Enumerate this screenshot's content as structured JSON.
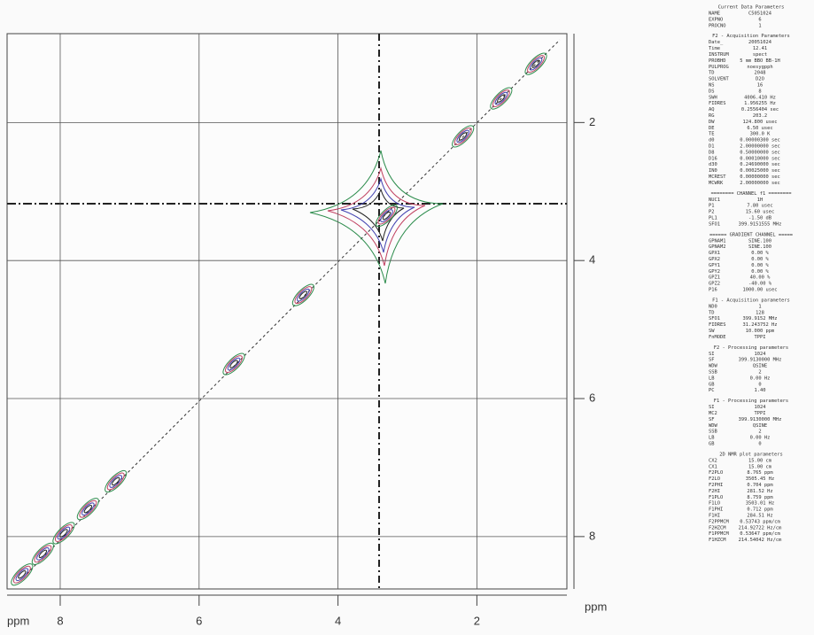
{
  "chart_data": {
    "type": "contour",
    "x_label": "ppm",
    "y_label": "ppm",
    "xlim": [
      8.765,
      0.704
    ],
    "ylim": [
      0.712,
      8.759
    ],
    "xticks": [
      8,
      6,
      4,
      2
    ],
    "yticks": [
      2,
      4,
      6,
      8
    ],
    "grid": true,
    "color": "#2a2a6a",
    "peaks": [
      {
        "x": 8.55,
        "y": 8.55
      },
      {
        "x": 8.25,
        "y": 8.25
      },
      {
        "x": 7.95,
        "y": 7.95
      },
      {
        "x": 7.6,
        "y": 7.6
      },
      {
        "x": 7.2,
        "y": 7.2
      },
      {
        "x": 5.5,
        "y": 5.5
      },
      {
        "x": 4.5,
        "y": 4.5
      },
      {
        "x": 3.3,
        "y": 3.35
      },
      {
        "x": 2.2,
        "y": 2.2
      },
      {
        "x": 1.65,
        "y": 1.65
      },
      {
        "x": 1.15,
        "y": 1.15
      }
    ]
  },
  "parameters": [
    {
      "title": "Current Data Parameters",
      "rows": [
        [
          "NAME",
          "C5051024"
        ],
        [
          "EXPNO",
          "6"
        ],
        [
          "PROCNO",
          "1"
        ]
      ]
    },
    {
      "title": "F2 - Acquisition Parameters",
      "rows": [
        [
          "Date_",
          "20051024"
        ],
        [
          "Time",
          "12.41"
        ],
        [
          "INSTRUM",
          "spect"
        ],
        [
          "PROBHD",
          "5 mm BBO BB-1H"
        ],
        [
          "PULPROG",
          "noesygpph"
        ],
        [
          "TD",
          "2048"
        ],
        [
          "SOLVENT",
          "D2O"
        ],
        [
          "NS",
          "16"
        ],
        [
          "DS",
          "8"
        ],
        [
          "SWH",
          "4006.410 Hz"
        ],
        [
          "FIDRES",
          "1.956255 Hz"
        ],
        [
          "AQ",
          "0.2556404 sec"
        ],
        [
          "RG",
          "203.2"
        ],
        [
          "DW",
          "124.800 usec"
        ],
        [
          "DE",
          "6.50 usec"
        ],
        [
          "TE",
          "300.0 K"
        ],
        [
          "d0",
          "0.00000300 sec"
        ],
        [
          "D1",
          "2.00000000 sec"
        ],
        [
          "D8",
          "0.50000000 sec"
        ],
        [
          "D16",
          "0.00010000 sec"
        ],
        [
          "d30",
          "0.24690000 sec"
        ],
        [
          "IN0",
          "0.00025000 sec"
        ],
        [
          "MCREST",
          "0.00000000 sec"
        ],
        [
          "MCWRK",
          "2.00000000 sec"
        ]
      ]
    },
    {
      "title": "======== CHANNEL f1 ========",
      "rows": [
        [
          "NUC1",
          "1H"
        ],
        [
          "P1",
          "7.80 usec"
        ],
        [
          "P2",
          "15.60 usec"
        ],
        [
          "PL1",
          "-1.50 dB"
        ],
        [
          "SFO1",
          "399.9151555 MHz"
        ]
      ]
    },
    {
      "title": "====== GRADIENT CHANNEL =====",
      "rows": [
        [
          "GPNAM1",
          "SINE.100"
        ],
        [
          "GPNAM2",
          "SINE.100"
        ],
        [
          "GPX1",
          "0.00 %"
        ],
        [
          "GPX2",
          "0.00 %"
        ],
        [
          "GPY1",
          "0.00 %"
        ],
        [
          "GPY2",
          "0.00 %"
        ],
        [
          "GPZ1",
          "40.00 %"
        ],
        [
          "GPZ2",
          "-40.00 %"
        ],
        [
          "P16",
          "1000.00 usec"
        ]
      ]
    },
    {
      "title": "F1 - Acquisition parameters",
      "rows": [
        [
          "ND0",
          "1"
        ],
        [
          "TD",
          "128"
        ],
        [
          "SFO1",
          "399.9152 MHz"
        ],
        [
          "FIDRES",
          "31.243752 Hz"
        ],
        [
          "SW",
          "10.000 ppm"
        ],
        [
          "FnMODE",
          "TPPI"
        ]
      ]
    },
    {
      "title": "F2 - Processing parameters",
      "rows": [
        [
          "SI",
          "1024"
        ],
        [
          "SF",
          "399.9130000 MHz"
        ],
        [
          "WDW",
          "QSINE"
        ],
        [
          "SSB",
          "2"
        ],
        [
          "LB",
          "0.00 Hz"
        ],
        [
          "GB",
          "0"
        ],
        [
          "PC",
          "1.40"
        ]
      ]
    },
    {
      "title": "F1 - Processing parameters",
      "rows": [
        [
          "SI",
          "1024"
        ],
        [
          "MC2",
          "TPPI"
        ],
        [
          "SF",
          "399.9130000 MHz"
        ],
        [
          "WDW",
          "QSINE"
        ],
        [
          "SSB",
          "2"
        ],
        [
          "LB",
          "0.00 Hz"
        ],
        [
          "GB",
          "0"
        ]
      ]
    },
    {
      "title": "2D NMR plot parameters",
      "rows": [
        [
          "CX2",
          "15.00 cm"
        ],
        [
          "CX1",
          "15.00 cm"
        ],
        [
          "F2PLO",
          "8.765 ppm"
        ],
        [
          "F2LO",
          "3505.45 Hz"
        ],
        [
          "F2PHI",
          "0.704 ppm"
        ],
        [
          "F2HI",
          "281.52 Hz"
        ],
        [
          "F1PLO",
          "8.759 ppm"
        ],
        [
          "F1LO",
          "3503.01 Hz"
        ],
        [
          "F1PHI",
          "0.712 ppm"
        ],
        [
          "F1HI",
          "284.51 Hz"
        ],
        [
          "F2PPMCM",
          "0.53743 ppm/cm"
        ],
        [
          "F2HZCM",
          "214.92722 Hz/cm"
        ],
        [
          "F1PPMCM",
          "0.53647 ppm/cm"
        ],
        [
          "F1HZCM",
          "214.54042 Hz/cm"
        ]
      ]
    }
  ]
}
